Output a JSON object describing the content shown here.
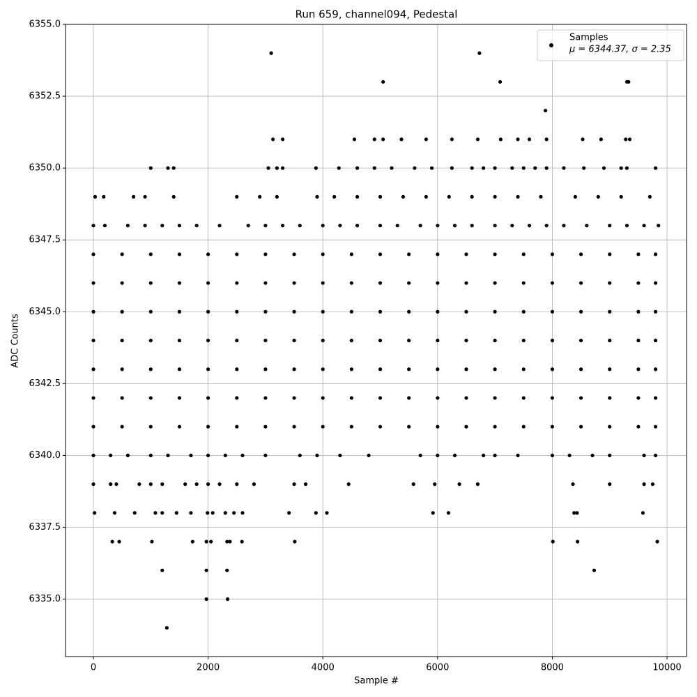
{
  "chart_data": {
    "type": "scatter",
    "title": "Run 659, channel094, Pedestal",
    "x_label": "Sample #",
    "y_label": "ADC Counts",
    "legend_position": "upper right",
    "legend_note": "μ = 6344.37, σ = 2.35",
    "grid": true,
    "xlim": [
      -486,
      10340
    ],
    "ylim": [
      6333,
      6355
    ],
    "xticks": [
      0,
      2000,
      4000,
      6000,
      8000,
      10000
    ],
    "yticks": [
      {
        "value": 6335,
        "label": "6335.0"
      },
      {
        "value": 6337.5,
        "label": "6337.5"
      },
      {
        "value": 6340,
        "label": "6340.0"
      },
      {
        "value": 6342.5,
        "label": "6342.5"
      },
      {
        "value": 6345,
        "label": "6345.0"
      },
      {
        "value": 6347.5,
        "label": "6347.5"
      },
      {
        "value": 6350,
        "label": "6350.0"
      },
      {
        "value": 6352.5,
        "label": "6352.5"
      },
      {
        "value": 6355,
        "label": "6355.0"
      }
    ],
    "x": [
      0,
      500,
      1000,
      1500,
      2000,
      2500,
      3000,
      3500,
      4000,
      4500,
      5000,
      5500,
      6000,
      6500,
      7000,
      7500,
      8000,
      8500,
      9000,
      9500,
      9800,
      0,
      500,
      1000,
      1500,
      2000,
      2500,
      3000,
      3500,
      4000,
      4500,
      5000,
      5500,
      6000,
      6500,
      7000,
      7500,
      8000,
      8500,
      9000,
      9500,
      9800,
      0,
      500,
      1000,
      1500,
      2000,
      2500,
      3000,
      3500,
      4000,
      4500,
      5000,
      5500,
      6000,
      6500,
      7000,
      7500,
      8000,
      8500,
      9000,
      9500,
      9800,
      0,
      500,
      1000,
      1500,
      2000,
      2500,
      3000,
      3500,
      4000,
      4500,
      5000,
      5500,
      6000,
      6500,
      7000,
      7500,
      8000,
      8500,
      9000,
      9500,
      9800,
      0,
      500,
      1000,
      1500,
      2000,
      2500,
      3000,
      3500,
      4000,
      4500,
      5000,
      5500,
      6000,
      6500,
      7000,
      7500,
      8000,
      8500,
      9000,
      9500,
      9800,
      0,
      500,
      1000,
      1500,
      2000,
      2500,
      3000,
      3500,
      4000,
      4500,
      5000,
      5500,
      6000,
      6500,
      7000,
      7500,
      8000,
      8500,
      9000,
      9500,
      9800,
      0,
      500,
      1000,
      1500,
      2000,
      2500,
      3000,
      3500,
      4000,
      4500,
      5000,
      5500,
      6000,
      6500,
      7000,
      7500,
      8000,
      8500,
      9000,
      9500,
      9800,
      0,
      300,
      600,
      1000,
      1300,
      1700,
      2000,
      2300,
      2600,
      3000,
      3600,
      3900,
      4300,
      4800,
      5700,
      6000,
      6300,
      6800,
      7000,
      7400,
      8000,
      8300,
      8700,
      9000,
      9600,
      9800,
      0,
      200,
      600,
      900,
      1200,
      1500,
      1800,
      2200,
      2700,
      3000,
      3300,
      3600,
      4000,
      4300,
      4600,
      5000,
      5300,
      5700,
      6000,
      6300,
      6600,
      7000,
      7300,
      7600,
      7900,
      8200,
      8600,
      9000,
      9300,
      9600,
      9850,
      0,
      300,
      400,
      800,
      1000,
      1200,
      1600,
      1800,
      2000,
      2200,
      2500,
      2800,
      3500,
      3700,
      4450,
      5580,
      5950,
      6380,
      6700,
      8360,
      9000,
      9600,
      9750,
      30,
      180,
      700,
      900,
      1400,
      2500,
      2900,
      3200,
      3900,
      4200,
      4600,
      5000,
      5400,
      5800,
      6200,
      6600,
      7000,
      7400,
      7800,
      8400,
      8800,
      9200,
      9700,
      1000,
      1300,
      1400,
      3050,
      3200,
      3300,
      3880,
      4280,
      4600,
      4900,
      5200,
      5600,
      5900,
      6250,
      6600,
      6800,
      7000,
      7300,
      7500,
      7700,
      7900,
      8200,
      8550,
      8900,
      9200,
      9300,
      9800,
      3130,
      3300,
      4550,
      4900,
      5050,
      5370,
      5800,
      6250,
      6700,
      7100,
      7400,
      7600,
      7900,
      8530,
      8850,
      9280,
      9350,
      20,
      370,
      720,
      1080,
      1200,
      1450,
      1700,
      1990,
      2080,
      2300,
      2450,
      2600,
      3410,
      3880,
      4070,
      5920,
      6190,
      8380,
      8430,
      9580,
      330,
      450,
      1020,
      1730,
      1970,
      2050,
      2330,
      2380,
      2590,
      3510,
      8010,
      8440,
      9830,
      1200,
      1970,
      2330,
      8730,
      1970,
      2340,
      1280,
      3100,
      6730,
      5050,
      7090,
      9300,
      9330,
      7880
    ],
    "series": [
      {
        "name": "Samples",
        "color": "#000000",
        "values": [
          6341,
          6341,
          6341,
          6341,
          6341,
          6341,
          6341,
          6341,
          6341,
          6341,
          6341,
          6341,
          6341,
          6341,
          6341,
          6341,
          6341,
          6341,
          6341,
          6341,
          6341,
          6342,
          6342,
          6342,
          6342,
          6342,
          6342,
          6342,
          6342,
          6342,
          6342,
          6342,
          6342,
          6342,
          6342,
          6342,
          6342,
          6342,
          6342,
          6342,
          6342,
          6342,
          6343,
          6343,
          6343,
          6343,
          6343,
          6343,
          6343,
          6343,
          6343,
          6343,
          6343,
          6343,
          6343,
          6343,
          6343,
          6343,
          6343,
          6343,
          6343,
          6343,
          6343,
          6344,
          6344,
          6344,
          6344,
          6344,
          6344,
          6344,
          6344,
          6344,
          6344,
          6344,
          6344,
          6344,
          6344,
          6344,
          6344,
          6344,
          6344,
          6344,
          6344,
          6344,
          6345,
          6345,
          6345,
          6345,
          6345,
          6345,
          6345,
          6345,
          6345,
          6345,
          6345,
          6345,
          6345,
          6345,
          6345,
          6345,
          6345,
          6345,
          6345,
          6345,
          6345,
          6346,
          6346,
          6346,
          6346,
          6346,
          6346,
          6346,
          6346,
          6346,
          6346,
          6346,
          6346,
          6346,
          6346,
          6346,
          6346,
          6346,
          6346,
          6346,
          6346,
          6346,
          6347,
          6347,
          6347,
          6347,
          6347,
          6347,
          6347,
          6347,
          6347,
          6347,
          6347,
          6347,
          6347,
          6347,
          6347,
          6347,
          6347,
          6347,
          6347,
          6347,
          6347,
          6340,
          6340,
          6340,
          6340,
          6340,
          6340,
          6340,
          6340,
          6340,
          6340,
          6340,
          6340,
          6340,
          6340,
          6340,
          6340,
          6340,
          6340,
          6340,
          6340,
          6340,
          6340,
          6340,
          6340,
          6340,
          6340,
          6348,
          6348,
          6348,
          6348,
          6348,
          6348,
          6348,
          6348,
          6348,
          6348,
          6348,
          6348,
          6348,
          6348,
          6348,
          6348,
          6348,
          6348,
          6348,
          6348,
          6348,
          6348,
          6348,
          6348,
          6348,
          6348,
          6348,
          6348,
          6348,
          6348,
          6348,
          6339,
          6339,
          6339,
          6339,
          6339,
          6339,
          6339,
          6339,
          6339,
          6339,
          6339,
          6339,
          6339,
          6339,
          6339,
          6339,
          6339,
          6339,
          6339,
          6339,
          6339,
          6339,
          6339,
          6349,
          6349,
          6349,
          6349,
          6349,
          6349,
          6349,
          6349,
          6349,
          6349,
          6349,
          6349,
          6349,
          6349,
          6349,
          6349,
          6349,
          6349,
          6349,
          6349,
          6349,
          6349,
          6349,
          6350,
          6350,
          6350,
          6350,
          6350,
          6350,
          6350,
          6350,
          6350,
          6350,
          6350,
          6350,
          6350,
          6350,
          6350,
          6350,
          6350,
          6350,
          6350,
          6350,
          6350,
          6350,
          6350,
          6350,
          6350,
          6350,
          6350,
          6351,
          6351,
          6351,
          6351,
          6351,
          6351,
          6351,
          6351,
          6351,
          6351,
          6351,
          6351,
          6351,
          6351,
          6351,
          6351,
          6351,
          6338,
          6338,
          6338,
          6338,
          6338,
          6338,
          6338,
          6338,
          6338,
          6338,
          6338,
          6338,
          6338,
          6338,
          6338,
          6338,
          6338,
          6338,
          6338,
          6338,
          6337,
          6337,
          6337,
          6337,
          6337,
          6337,
          6337,
          6337,
          6337,
          6337,
          6337,
          6337,
          6337,
          6336,
          6336,
          6336,
          6336,
          6335,
          6335,
          6334,
          6354,
          6354,
          6353,
          6353,
          6353,
          6353,
          6352
        ]
      }
    ]
  }
}
